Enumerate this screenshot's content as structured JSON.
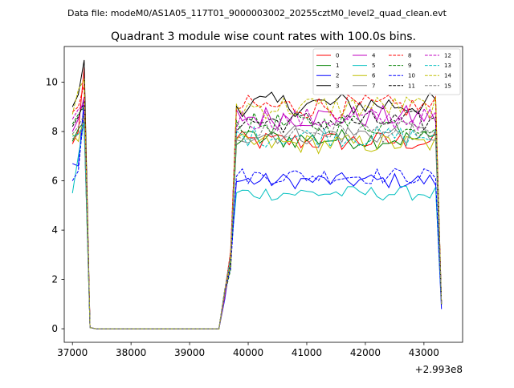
{
  "header": {
    "data_file": "Data file: modeM0/AS1A05_117T01_9000003002_20255cztM0_level2_quad_clean.evt"
  },
  "chart_data": {
    "type": "line",
    "title": "Quadrant 3 module wise count rates with 100.0s bins.",
    "xlabel": "",
    "ylabel": "",
    "x_offset_label": "+2.993e8",
    "xlim": [
      36860,
      43660
    ],
    "ylim": [
      -0.55,
      11.45
    ],
    "x_ticks": [
      37000,
      38000,
      39000,
      40000,
      41000,
      42000,
      43000
    ],
    "x_tick_labels": [
      "37000",
      "38000",
      "39000",
      "40000",
      "41000",
      "42000",
      "43000"
    ],
    "y_ticks": [
      0,
      2,
      4,
      6,
      8,
      10
    ],
    "y_tick_labels": [
      "0",
      "2",
      "4",
      "6",
      "8",
      "10"
    ],
    "legend_position": "top-right",
    "series": [
      {
        "name": "0",
        "color": "#ff0000",
        "dash": "solid",
        "pre": [
          7.5,
          8.0,
          10.6
        ],
        "level": 7.6,
        "end": 1.0
      },
      {
        "name": "1",
        "color": "#008000",
        "dash": "solid",
        "pre": [
          7.6,
          8.1,
          8.4
        ],
        "level": 7.7,
        "end": 1.0
      },
      {
        "name": "2",
        "color": "#0000ff",
        "dash": "solid",
        "pre": [
          6.7,
          6.6,
          9.3
        ],
        "level": 6.0,
        "end": 0.8
      },
      {
        "name": "3",
        "color": "#000000",
        "dash": "solid",
        "pre": [
          9.0,
          9.5,
          10.9
        ],
        "level": 9.1,
        "end": 1.0
      },
      {
        "name": "4",
        "color": "#c000c0",
        "dash": "solid",
        "pre": [
          8.0,
          8.5,
          9.4
        ],
        "level": 8.6,
        "end": 1.0
      },
      {
        "name": "5",
        "color": "#00bfbf",
        "dash": "solid",
        "pre": [
          5.5,
          7.0,
          8.4
        ],
        "level": 5.5,
        "end": 1.0
      },
      {
        "name": "6",
        "color": "#bfbf00",
        "dash": "solid",
        "pre": [
          7.9,
          7.6,
          8.6
        ],
        "level": 7.5,
        "end": 1.0
      },
      {
        "name": "7",
        "color": "#808080",
        "dash": "solid",
        "pre": [
          7.7,
          7.9,
          8.2
        ],
        "level": 7.9,
        "end": 1.0
      },
      {
        "name": "8",
        "color": "#ff0000",
        "dash": "dashed",
        "pre": [
          8.8,
          9.0,
          9.9
        ],
        "level": 9.0,
        "end": 1.0
      },
      {
        "name": "9",
        "color": "#008000",
        "dash": "dashed",
        "pre": [
          8.3,
          8.7,
          9.0
        ],
        "level": 8.3,
        "end": 1.0
      },
      {
        "name": "10",
        "color": "#0000ff",
        "dash": "dashed",
        "pre": [
          6.0,
          6.4,
          8.9
        ],
        "level": 6.2,
        "end": 1.0
      },
      {
        "name": "11",
        "color": "#000000",
        "dash": "dashed",
        "pre": [
          8.2,
          8.6,
          9.2
        ],
        "level": 8.4,
        "end": 1.0
      },
      {
        "name": "12",
        "color": "#c000c0",
        "dash": "dashed",
        "pre": [
          8.5,
          8.9,
          9.1
        ],
        "level": 8.5,
        "end": 1.0
      },
      {
        "name": "13",
        "color": "#00bfbf",
        "dash": "dashed",
        "pre": [
          7.8,
          7.9,
          8.3
        ],
        "level": 7.8,
        "end": 1.0
      },
      {
        "name": "14",
        "color": "#bfbf00",
        "dash": "dashed",
        "pre": [
          8.7,
          9.7,
          10.1
        ],
        "level": 9.0,
        "end": 1.0
      },
      {
        "name": "15",
        "color": "#808080",
        "dash": "dashed",
        "pre": [
          7.9,
          8.2,
          8.7
        ],
        "level": 8.0,
        "end": 1.0
      }
    ],
    "time_structure": {
      "start": 37000,
      "bin": 100,
      "pre_times": [
        37000,
        37100,
        37200
      ],
      "drop_time": 37300,
      "drop_value": 0.05,
      "gap_from": 37400,
      "gap_to": 39500,
      "gap_value": 0.0,
      "rise_times": [
        39600,
        39700
      ],
      "rise_values": [
        1.4,
        2.8
      ],
      "plateau_from": 39800,
      "plateau_to": 43200,
      "end_time": 43300
    }
  }
}
